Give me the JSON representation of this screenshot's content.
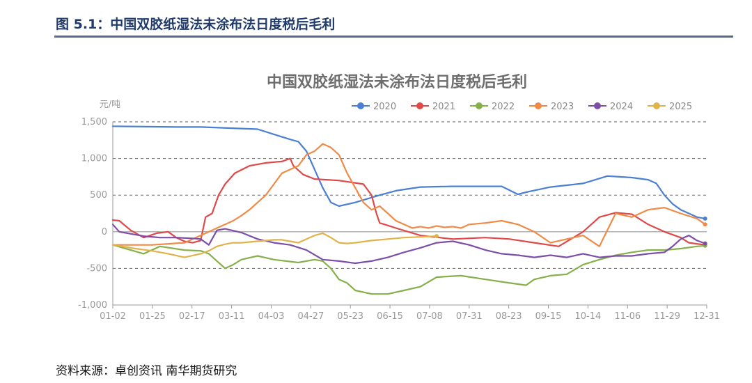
{
  "header": {
    "figure_title": "图 5.1：中国双胶纸湿法未涂布法日度税后毛利"
  },
  "footer": {
    "source": "资料来源：卓创资讯    南华期货研究"
  },
  "chart_data": {
    "type": "line",
    "title": "中国双胶纸湿法未涂布法日度税后毛利",
    "ylabel": "元/吨",
    "xlabel": "",
    "ylim": [
      -1000,
      1500
    ],
    "yticks": [
      1500,
      1000,
      500,
      0,
      -500,
      -1000
    ],
    "ytick_labels": [
      "1,500",
      "1,000",
      "500",
      "0",
      "-500",
      "-1,000"
    ],
    "x_tick_labels": [
      "01-02",
      "01-25",
      "02-17",
      "03-11",
      "04-03",
      "04-27",
      "05-23",
      "06-15",
      "07-08",
      "07-31",
      "08-23",
      "09-15",
      "10-14",
      "11-06",
      "11-29",
      "12-31"
    ],
    "grid": "horizontal dashed",
    "legend_position": "top-right",
    "x_domain": [
      1,
      366
    ],
    "series": [
      {
        "name": "2020",
        "color": "#4a7fd4",
        "x": [
          1,
          40,
          55,
          90,
          100,
          110,
          115,
          120,
          126,
          130,
          135,
          140,
          150,
          165,
          175,
          190,
          210,
          240,
          250,
          255,
          270,
          290,
          305,
          320,
          330,
          335,
          340,
          345,
          350,
          360,
          365
        ],
        "y": [
          1440,
          1430,
          1430,
          1400,
          1330,
          1260,
          1230,
          1100,
          800,
          600,
          400,
          350,
          400,
          500,
          560,
          610,
          620,
          620,
          510,
          540,
          610,
          660,
          760,
          740,
          710,
          660,
          500,
          380,
          300,
          200,
          180
        ]
      },
      {
        "name": "2021",
        "color": "#e04848",
        "x": [
          1,
          5,
          12,
          20,
          28,
          35,
          40,
          45,
          50,
          55,
          58,
          62,
          66,
          70,
          76,
          85,
          95,
          105,
          110,
          112,
          118,
          125,
          140,
          155,
          160,
          163,
          165,
          168,
          175,
          190,
          210,
          230,
          245,
          260,
          275,
          290,
          300,
          310,
          320,
          330,
          340,
          350,
          355,
          365
        ],
        "y": [
          160,
          150,
          20,
          -80,
          -20,
          0,
          -80,
          -130,
          -150,
          -120,
          200,
          250,
          500,
          650,
          800,
          900,
          940,
          960,
          1000,
          900,
          780,
          720,
          700,
          650,
          500,
          250,
          120,
          100,
          50,
          -50,
          -100,
          -80,
          -100,
          -150,
          -200,
          0,
          200,
          260,
          240,
          100,
          0,
          -80,
          -150,
          -180
        ]
      },
      {
        "name": "2022",
        "color": "#86b049",
        "x": [
          1,
          20,
          30,
          45,
          55,
          60,
          65,
          70,
          75,
          80,
          90,
          100,
          115,
          125,
          130,
          135,
          140,
          145,
          150,
          160,
          170,
          180,
          190,
          200,
          215,
          230,
          245,
          255,
          260,
          270,
          280,
          290,
          300,
          310,
          320,
          330,
          340,
          350,
          360,
          365
        ],
        "y": [
          -180,
          -300,
          -200,
          -250,
          -260,
          -300,
          -400,
          -500,
          -450,
          -380,
          -330,
          -380,
          -420,
          -380,
          -400,
          -500,
          -650,
          -700,
          -800,
          -850,
          -850,
          -800,
          -750,
          -620,
          -600,
          -650,
          -700,
          -730,
          -650,
          -600,
          -580,
          -450,
          -380,
          -320,
          -280,
          -250,
          -250,
          -230,
          -200,
          -190
        ]
      },
      {
        "name": "2023",
        "color": "#f08a46",
        "x": [
          1,
          25,
          45,
          55,
          65,
          75,
          80,
          85,
          95,
          100,
          105,
          110,
          115,
          120,
          125,
          130,
          135,
          140,
          145,
          150,
          155,
          160,
          165,
          170,
          175,
          180,
          185,
          190,
          195,
          200,
          205,
          210,
          215,
          220,
          230,
          240,
          250,
          260,
          270,
          280,
          290,
          300,
          310,
          320,
          330,
          340,
          350,
          360,
          365
        ],
        "y": [
          -180,
          -180,
          -150,
          -50,
          50,
          150,
          220,
          300,
          500,
          650,
          800,
          850,
          900,
          1050,
          1100,
          1200,
          1150,
          1050,
          800,
          600,
          400,
          300,
          350,
          250,
          150,
          100,
          50,
          70,
          50,
          80,
          60,
          70,
          50,
          100,
          120,
          150,
          100,
          0,
          -150,
          -100,
          -50,
          -200,
          250,
          200,
          300,
          330,
          250,
          180,
          100
        ]
      },
      {
        "name": "2024",
        "color": "#7d4ea8",
        "x": [
          1,
          5,
          10,
          20,
          30,
          40,
          50,
          55,
          60,
          65,
          70,
          80,
          90,
          100,
          110,
          120,
          130,
          140,
          150,
          160,
          170,
          180,
          190,
          200,
          210,
          220,
          230,
          240,
          250,
          260,
          270,
          280,
          290,
          300,
          310,
          320,
          330,
          340,
          345,
          350,
          355,
          360,
          365
        ],
        "y": [
          100,
          0,
          -20,
          -60,
          -80,
          -80,
          -90,
          -100,
          -180,
          20,
          40,
          -10,
          -100,
          -150,
          -180,
          -250,
          -380,
          -400,
          -430,
          -400,
          -350,
          -280,
          -220,
          -150,
          -130,
          -180,
          -250,
          -300,
          -320,
          -350,
          -320,
          -350,
          -300,
          -350,
          -330,
          -330,
          -300,
          -280,
          -200,
          -100,
          -50,
          -120,
          -160
        ]
      },
      {
        "name": "2025",
        "color": "#e0b24a",
        "x": [
          1,
          15,
          25,
          35,
          45,
          55,
          60,
          65,
          70,
          75,
          80,
          85,
          90,
          95,
          100,
          105,
          110,
          115,
          120,
          125,
          130,
          135,
          140,
          145,
          150,
          160,
          170,
          180,
          190,
          200
        ],
        "y": [
          -180,
          -230,
          -260,
          -300,
          -350,
          -300,
          -260,
          -200,
          -170,
          -150,
          -150,
          -140,
          -130,
          -120,
          -110,
          -110,
          -130,
          -150,
          -100,
          -50,
          -20,
          -80,
          -150,
          -160,
          -150,
          -120,
          -100,
          -80,
          -70,
          -60
        ]
      }
    ]
  }
}
